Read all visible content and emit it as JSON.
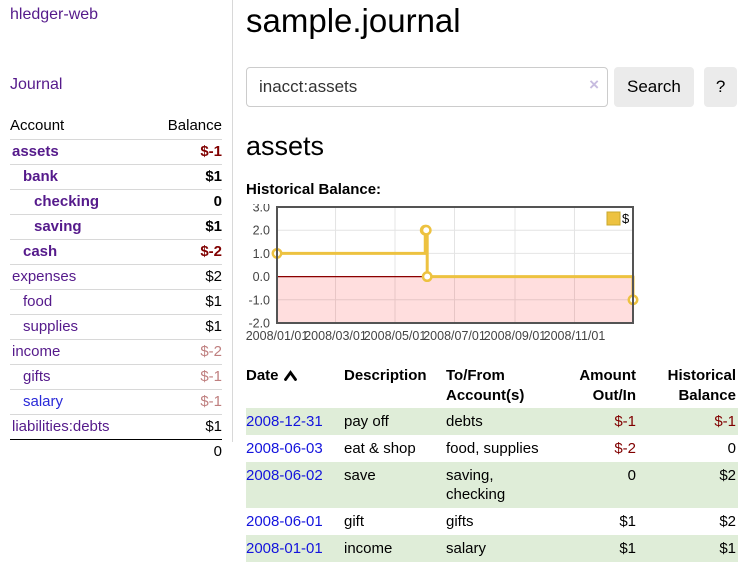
{
  "colors": {
    "link_purple": "#551a8b",
    "link_blue": "#2a2ad8",
    "date_link_blue": "#1414dd",
    "negative_red": "#800000",
    "dimmed_negative_red": "#bf7f7f",
    "row_stripe_green": "#dfedd8",
    "series_gold": "#edc240",
    "zero_line_red": "#8b0000",
    "negative_region_pink": "rgba(255,0,0,0.13)",
    "chart_border_gray": "#545454",
    "grid_gray": "#e4e4e4"
  },
  "sidebar": {
    "brand": "hledger-web",
    "journal_link": "Journal",
    "accounts_table": {
      "account_header": "Account",
      "balance_header": "Balance",
      "rows": [
        {
          "name": "assets",
          "balance": "$-1",
          "level": 1,
          "bold": true,
          "negative": true,
          "dim": false,
          "blue": false
        },
        {
          "name": "bank",
          "balance": "$1",
          "level": 2,
          "bold": true,
          "negative": false,
          "dim": false,
          "blue": false
        },
        {
          "name": "checking",
          "balance": "0",
          "level": 3,
          "bold": true,
          "negative": false,
          "dim": false,
          "blue": false
        },
        {
          "name": "saving",
          "balance": "$1",
          "level": 3,
          "bold": true,
          "negative": false,
          "dim": false,
          "blue": false
        },
        {
          "name": "cash",
          "balance": "$-2",
          "level": 2,
          "bold": true,
          "negative": true,
          "dim": false,
          "blue": false
        },
        {
          "name": "expenses",
          "balance": "$2",
          "level": 1,
          "bold": false,
          "negative": false,
          "dim": false,
          "blue": false
        },
        {
          "name": "food",
          "balance": "$1",
          "level": 2,
          "bold": false,
          "negative": false,
          "dim": false,
          "blue": false
        },
        {
          "name": "supplies",
          "balance": "$1",
          "level": 2,
          "bold": false,
          "negative": false,
          "dim": false,
          "blue": false
        },
        {
          "name": "income",
          "balance": "$-2",
          "level": 1,
          "bold": false,
          "negative": true,
          "dim": true,
          "blue": false
        },
        {
          "name": "gifts",
          "balance": "$-1",
          "level": 2,
          "bold": false,
          "negative": true,
          "dim": true,
          "blue": false
        },
        {
          "name": "salary",
          "balance": "$-1",
          "level": 2,
          "bold": false,
          "negative": true,
          "dim": true,
          "blue": true
        },
        {
          "name": "liabilities:debts",
          "balance": "$1",
          "level": 1,
          "bold": false,
          "negative": false,
          "dim": false,
          "blue": false
        }
      ],
      "total": "0"
    }
  },
  "main": {
    "title": "sample.journal",
    "search": {
      "value": "inacct:assets",
      "clear_icon": "×",
      "search_button": "Search",
      "help_button": "?"
    },
    "account_heading": "assets",
    "register": {
      "headers": [
        {
          "lines": [
            "Date"
          ],
          "align": "left",
          "sort_icon": "caret-up-icon"
        },
        {
          "lines": [
            "Description"
          ],
          "align": "left"
        },
        {
          "lines": [
            "To/From",
            "Account(s)"
          ],
          "align": "left"
        },
        {
          "lines": [
            "Amount",
            "Out/In"
          ],
          "align": "right"
        },
        {
          "lines": [
            "Historical",
            "Balance"
          ],
          "align": "right"
        }
      ],
      "rows": [
        {
          "date": "2008-12-31",
          "description": "pay off",
          "accounts": "debts",
          "amount": "$-1",
          "amount_negative": true,
          "balance": "$-1",
          "balance_negative": true
        },
        {
          "date": "2008-06-03",
          "description": "eat & shop",
          "accounts": "food, supplies",
          "amount": "$-2",
          "amount_negative": true,
          "balance": "0",
          "balance_negative": false
        },
        {
          "date": "2008-06-02",
          "description": "save",
          "accounts": "saving, checking",
          "amount": "0",
          "amount_negative": false,
          "balance": "$2",
          "balance_negative": false
        },
        {
          "date": "2008-06-01",
          "description": "gift",
          "accounts": "gifts",
          "amount": "$1",
          "amount_negative": false,
          "balance": "$2",
          "balance_negative": false
        },
        {
          "date": "2008-01-01",
          "description": "income",
          "accounts": "salary",
          "amount": "$1",
          "amount_negative": false,
          "balance": "$1",
          "balance_negative": false
        }
      ]
    }
  },
  "chart_data": {
    "type": "line",
    "step": true,
    "title": "Historical Balance:",
    "series": [
      {
        "name": "$",
        "color": "#edc240",
        "points": [
          [
            "2008-01-01",
            1
          ],
          [
            "2008-06-01",
            2
          ],
          [
            "2008-06-02",
            2
          ],
          [
            "2008-06-03",
            0
          ],
          [
            "2008-12-31",
            -1
          ]
        ]
      }
    ],
    "xlim": [
      "2008-01-01",
      "2008-12-31"
    ],
    "ylim": [
      -2,
      3
    ],
    "y_ticks": [
      3.0,
      2.0,
      1.0,
      0.0,
      -1.0,
      -2.0
    ],
    "y_tick_labels": [
      "3.0",
      "2.0",
      "1.0",
      "0.0",
      "-1.0",
      "-2.0"
    ],
    "x_ticks": [
      "2008-01-01",
      "2008-03-01",
      "2008-05-01",
      "2008-07-01",
      "2008-09-01",
      "2008-11-01"
    ],
    "x_tick_labels": [
      "2008/01/01",
      "2008/03/01",
      "2008/05/01",
      "2008/07/01",
      "2008/09/01",
      "2008/11/01"
    ],
    "grid": true,
    "legend": {
      "label": "$",
      "position": "top-right"
    },
    "negative_region_shaded": true
  }
}
